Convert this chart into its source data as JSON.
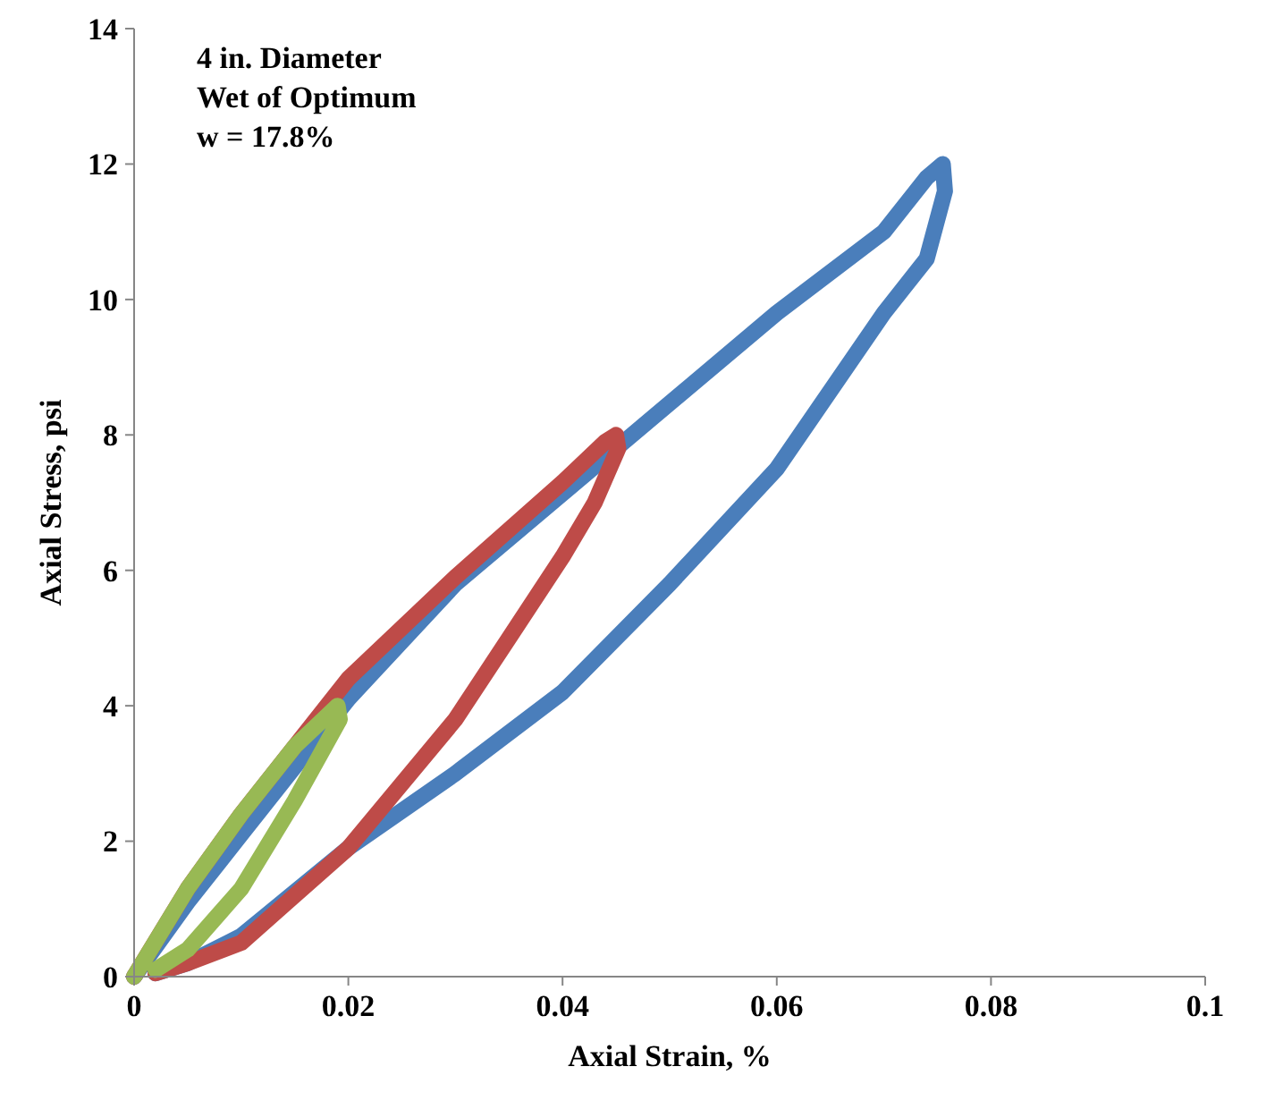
{
  "chart_data": {
    "type": "line",
    "xlabel": "Axial Strain, %",
    "ylabel": "Axial Stress, psi",
    "annotations": [
      "4 in. Diameter",
      "Wet of Optimum",
      "w = 17.8%"
    ],
    "xlim": [
      0,
      0.1
    ],
    "xticks": [
      0,
      0.02,
      0.04,
      0.06,
      0.08,
      0.1
    ],
    "ylim": [
      0,
      14
    ],
    "yticks": [
      0,
      2,
      4,
      6,
      8,
      10,
      12,
      14
    ],
    "grid": false,
    "marker": "none",
    "line_style": "solid",
    "series": [
      {
        "color": "#4a7ebb",
        "x": [
          0,
          0.005,
          0.01,
          0.02,
          0.03,
          0.045,
          0.06,
          0.07,
          0.074,
          0.0755,
          0.0757,
          0.074,
          0.07,
          0.06,
          0.05,
          0.04,
          0.03,
          0.02,
          0.01,
          0.005,
          0.002
        ],
        "values": [
          0,
          1.1,
          2.1,
          4.1,
          5.8,
          7.8,
          9.8,
          11,
          11.8,
          12,
          11.6,
          10.6,
          9.8,
          7.5,
          5.8,
          4.2,
          3,
          1.9,
          0.6,
          0.2,
          0.05
        ]
      },
      {
        "color": "#be4b48",
        "x": [
          0,
          0.005,
          0.01,
          0.02,
          0.03,
          0.04,
          0.044,
          0.045,
          0.0452,
          0.043,
          0.04,
          0.035,
          0.03,
          0.02,
          0.01,
          0.005,
          0.002
        ],
        "values": [
          0,
          1.3,
          2.4,
          4.4,
          5.9,
          7.3,
          7.9,
          8,
          7.8,
          7,
          6.2,
          5,
          3.8,
          1.9,
          0.5,
          0.2,
          0.05
        ]
      },
      {
        "color": "#98b954",
        "x": [
          0,
          0.005,
          0.01,
          0.015,
          0.019,
          0.0192,
          0.015,
          0.01,
          0.005,
          0.002
        ],
        "values": [
          0,
          1.3,
          2.4,
          3.4,
          4,
          3.8,
          2.6,
          1.3,
          0.4,
          0.1
        ]
      }
    ]
  }
}
